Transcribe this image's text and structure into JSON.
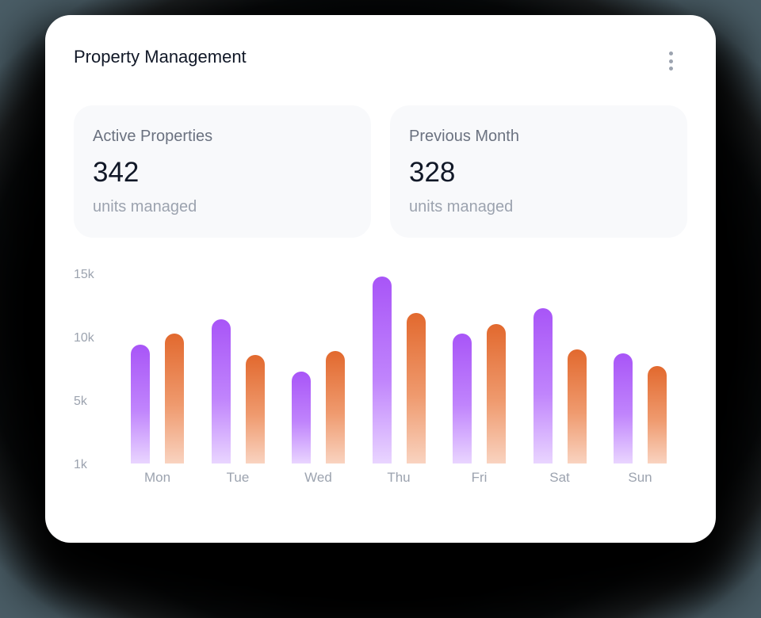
{
  "card": {
    "title": "Property Management",
    "menu_icon": "more-vertical-icon"
  },
  "stats": [
    {
      "label": "Active Properties",
      "value": "342",
      "sub": "units managed"
    },
    {
      "label": "Previous Month",
      "value": "328",
      "sub": "units managed"
    }
  ],
  "colors": {
    "current_top": "#a855f7",
    "current_bottom": "#e9d5ff",
    "previous_top": "#e2692e",
    "previous_bottom": "#f9d3c0",
    "title": "#111827",
    "muted": "#9ca3af"
  },
  "chart_data": {
    "type": "bar",
    "title": "",
    "xlabel": "",
    "ylabel": "",
    "categories": [
      "Mon",
      "Tue",
      "Wed",
      "Thu",
      "Fri",
      "Sat",
      "Sun"
    ],
    "y_tick_labels": [
      "15k",
      "10k",
      "5k",
      "1k"
    ],
    "ylim": [
      0,
      15000
    ],
    "grid": false,
    "legend": null,
    "series": [
      {
        "name": "Active Properties",
        "color": "#a855f7",
        "values": [
          9500,
          11500,
          7400,
          14900,
          10400,
          12400,
          8800
        ]
      },
      {
        "name": "Previous Month",
        "color": "#e2692e",
        "values": [
          10400,
          8700,
          9000,
          12000,
          11100,
          9100,
          7800
        ]
      }
    ]
  }
}
